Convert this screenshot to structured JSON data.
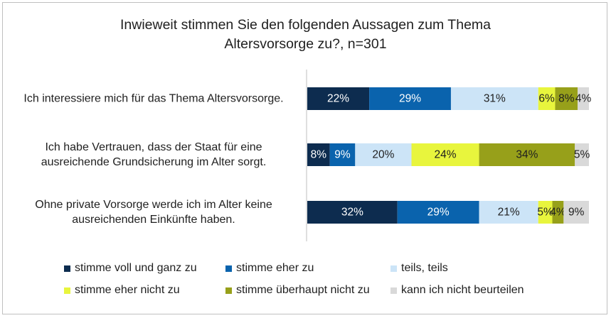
{
  "chart_data": {
    "type": "bar",
    "orientation": "horizontal",
    "stacked": "100%",
    "title": "Inwieweit stimmen Sie den folgenden Aussagen zum Thema Altersvorsorge zu?, n=301",
    "title_lines": [
      "Inwieweit stimmen Sie den folgenden Aussagen zum Thema",
      "Altersvorsorge zu?, n=301"
    ],
    "categories": [
      [
        "Ich interessiere mich für das Thema Altersvorsorge."
      ],
      [
        "Ich habe Vertrauen, dass der Staat für eine",
        "ausreichende Grundsicherung im Alter sorgt."
      ],
      [
        "Ohne private Vorsorge werde ich im Alter keine",
        "ausreichenden Einkünfte haben."
      ]
    ],
    "series": [
      {
        "name": "stimme voll und ganz zu",
        "color": "#0d2c4f",
        "label_color": "#ffffff",
        "values": [
          22,
          8,
          32
        ]
      },
      {
        "name": "stimme eher zu",
        "color": "#0a63ad",
        "label_color": "#ffffff",
        "values": [
          29,
          9,
          29
        ]
      },
      {
        "name": "teils, teils",
        "color": "#cce4f7",
        "label_color": "#1f1f1f",
        "values": [
          31,
          20,
          21
        ]
      },
      {
        "name": "stimme eher nicht zu",
        "color": "#e8f53d",
        "label_color": "#1f1f1f",
        "values": [
          6,
          24,
          5
        ]
      },
      {
        "name": "stimme überhaupt nicht zu",
        "color": "#97a01a",
        "label_color": "#1f1f1f",
        "values": [
          8,
          34,
          4
        ]
      },
      {
        "name": "kann ich nicht beurteilen",
        "color": "#d9d9d9",
        "label_color": "#1f1f1f",
        "values": [
          4,
          5,
          9
        ]
      }
    ],
    "value_suffix": "%",
    "legend_position": "bottom"
  }
}
